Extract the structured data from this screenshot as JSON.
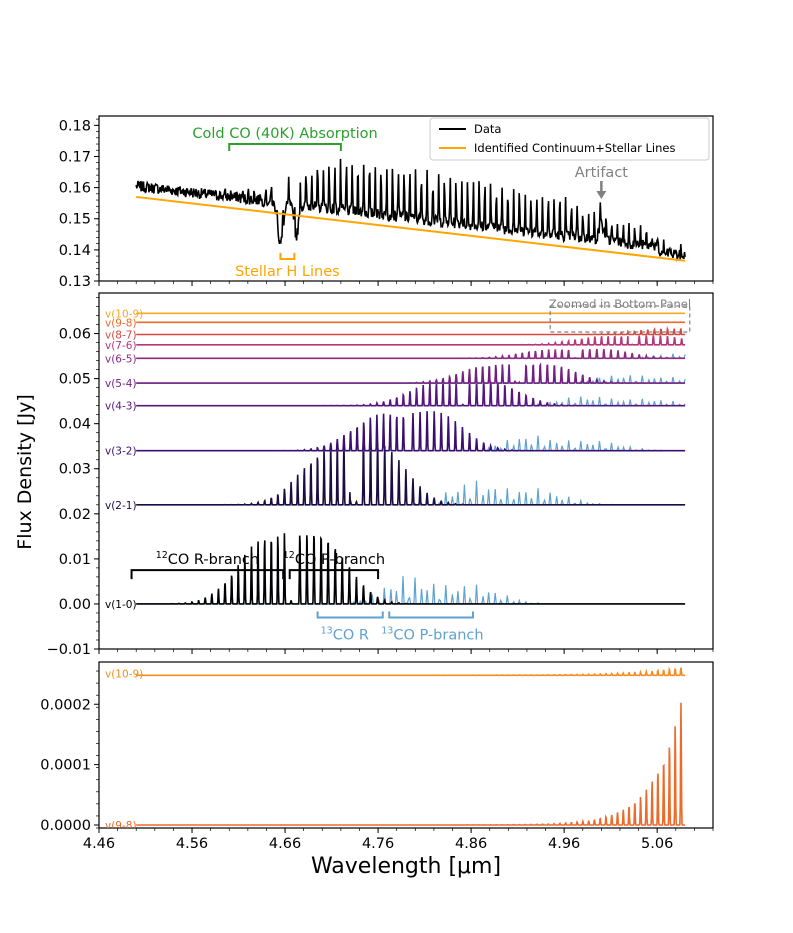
{
  "figure": {
    "ylabel": "Flux Density [Jy]",
    "xlabel": "Wavelength [μm]"
  },
  "chart_data": [
    {
      "type": "line",
      "panel": "top",
      "xlim": [
        4.46,
        5.12
      ],
      "ylim": [
        0.13,
        0.183
      ],
      "x_ticks": [
        4.46,
        4.56,
        4.66,
        4.76,
        4.86,
        4.96,
        5.06
      ],
      "y_ticks": [
        0.13,
        0.14,
        0.15,
        0.16,
        0.17,
        0.18
      ],
      "y_tick_labels": [
        "0.13",
        "0.14",
        "0.15",
        "0.16",
        "0.17",
        "0.18"
      ],
      "series": [
        {
          "name": "Data",
          "color": "#000000",
          "x_range": [
            4.5,
            5.09
          ]
        },
        {
          "name": "Identified Continuum+Stellar Lines",
          "color": "#ffa500",
          "x": [
            4.5,
            5.09
          ],
          "y": [
            0.157,
            0.1365
          ]
        }
      ],
      "legend_position": "top-right",
      "annotations": [
        {
          "text": "Cold CO (40K) Absorption",
          "color": "#2ca02c",
          "x_span": [
            4.6,
            4.72
          ],
          "y": 0.1785
        },
        {
          "text": "Artifact",
          "color": "#808080",
          "x": 5.0,
          "y": 0.166
        },
        {
          "text": "Stellar H Lines",
          "color": "#ffa500",
          "x_span": [
            4.655,
            4.67
          ],
          "y": 0.133
        }
      ]
    },
    {
      "type": "line",
      "panel": "middle",
      "xlim": [
        4.46,
        5.12
      ],
      "ylim": [
        -0.01,
        0.069
      ],
      "y_ticks": [
        -0.01,
        0.0,
        0.01,
        0.02,
        0.03,
        0.04,
        0.05,
        0.06
      ],
      "y_tick_labels": [
        "−0.01",
        "0.00",
        "0.01",
        "0.02",
        "0.03",
        "0.04",
        "0.05",
        "0.06"
      ],
      "series": [
        {
          "name": "v(1-0)",
          "color": "#000004",
          "offset": 0.0,
          "x_range": [
            4.5,
            5.09
          ]
        },
        {
          "name": "v(2-1)",
          "color": "#1b0c41",
          "offset": 0.022,
          "x_range": [
            4.5,
            5.09
          ]
        },
        {
          "name": "v(3-2)",
          "color": "#3b0f70",
          "offset": 0.034,
          "x_range": [
            4.5,
            5.09
          ]
        },
        {
          "name": "v(4-3)",
          "color": "#57157e",
          "offset": 0.044,
          "x_range": [
            4.5,
            5.09
          ]
        },
        {
          "name": "v(5-4)",
          "color": "#721f81",
          "offset": 0.049,
          "x_range": [
            4.5,
            5.09
          ]
        },
        {
          "name": "v(6-5)",
          "color": "#8c2981",
          "offset": 0.0545,
          "x_range": [
            4.5,
            5.09
          ]
        },
        {
          "name": "v(7-6)",
          "color": "#b73779",
          "offset": 0.0575,
          "x_range": [
            4.5,
            5.09
          ]
        },
        {
          "name": "v(8-7)",
          "color": "#d9463f",
          "offset": 0.0598,
          "x_range": [
            4.5,
            5.09
          ]
        },
        {
          "name": "v(9-8)",
          "color": "#ec6a2a",
          "offset": 0.0625,
          "x_range": [
            4.5,
            5.09
          ]
        },
        {
          "name": "v(10-9)",
          "color": "#f9a825",
          "offset": 0.0645,
          "x_range": [
            4.5,
            5.09
          ]
        }
      ],
      "isotopologue_color": "#5fa2d0",
      "annotations": [
        {
          "text": "CO R-branch",
          "superscript": "12",
          "color": "#000000",
          "x_span": [
            4.495,
            4.658
          ],
          "y": 0.0075
        },
        {
          "text": "CO P-branch",
          "superscript": "12",
          "color": "#000000",
          "x_span": [
            4.665,
            4.76
          ],
          "y": 0.0075
        },
        {
          "text": "CO R",
          "superscript": "13",
          "color": "#5fa2d0",
          "x_span": [
            4.695,
            4.765
          ],
          "y": -0.0008
        },
        {
          "text": "CO P-branch",
          "superscript": "13",
          "color": "#5fa2d0",
          "x_span": [
            4.772,
            4.862
          ],
          "y": -0.0008
        },
        {
          "text": "Zoomed in Bottom Panel",
          "color": "#808080",
          "x_span": [
            4.945,
            5.095
          ],
          "y": 0.0665
        }
      ]
    },
    {
      "type": "line",
      "panel": "bottom",
      "xlim": [
        4.46,
        5.12
      ],
      "ylim": [
        -5e-06,
        0.00027
      ],
      "y_ticks": [
        0.0,
        0.0001,
        0.0002
      ],
      "y_tick_labels": [
        "0.0000",
        "0.0001",
        "0.0002"
      ],
      "x_tick_labels": [
        "4.46",
        "4.56",
        "4.66",
        "4.76",
        "4.86",
        "4.96",
        "5.06"
      ],
      "series": [
        {
          "name": "v(10-9)",
          "color": "#f58c1f",
          "offset": 0.000248,
          "x_range": [
            4.5,
            5.09
          ]
        },
        {
          "name": "v(9-8)",
          "color": "#ec6a2a",
          "offset": 0.0,
          "x_range": [
            4.5,
            5.09
          ]
        }
      ]
    }
  ]
}
